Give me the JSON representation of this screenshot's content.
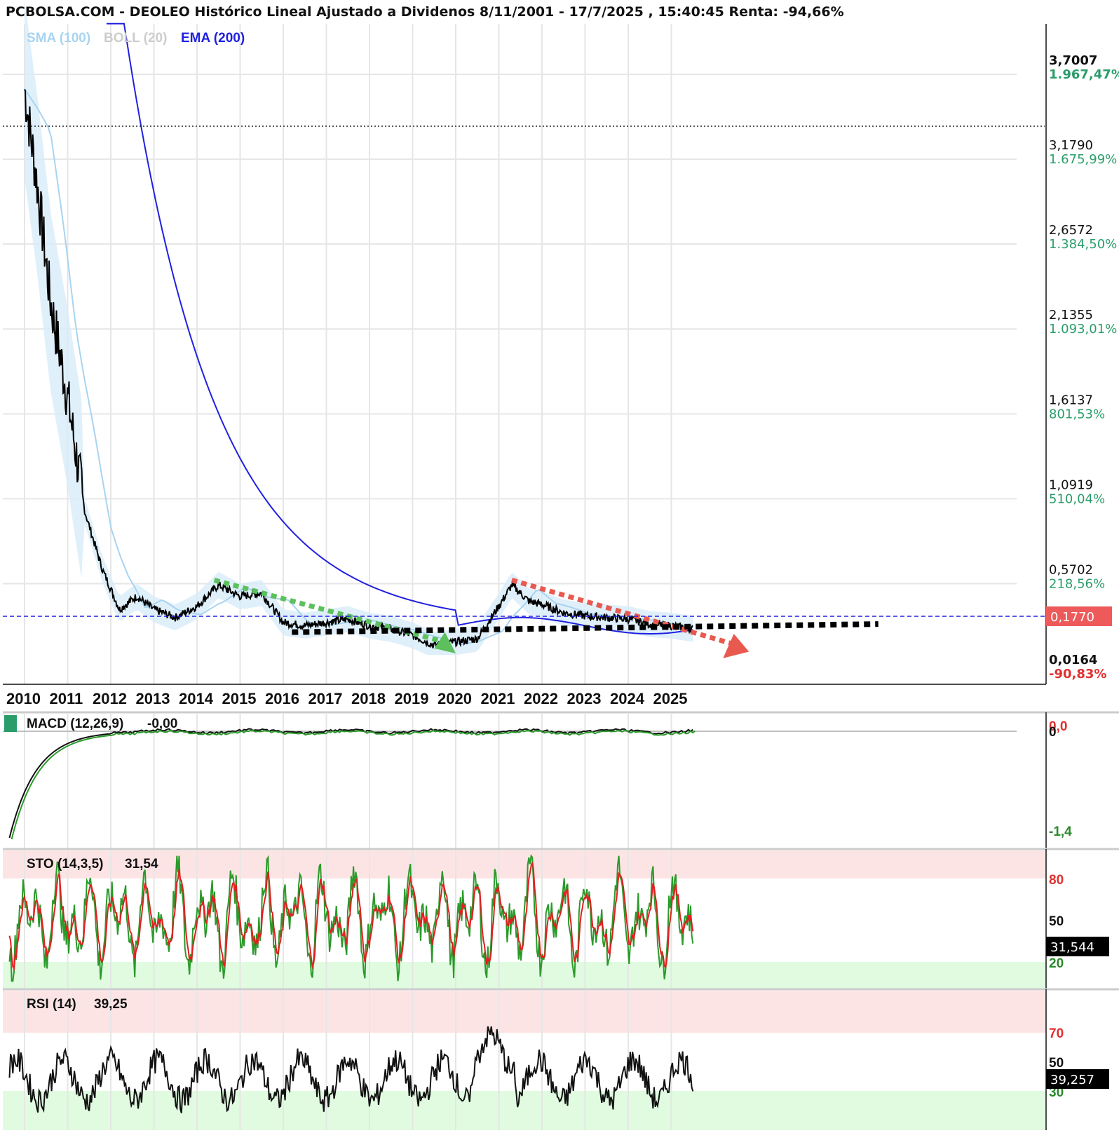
{
  "title": "PCBOLSA.COM - DEOLEO Histórico Lineal Ajustado a Dividenos 8/11/2001 - 17/7/2025 , 15:40:45 Renta: -94,66%",
  "colors": {
    "sma": "#a8d4f0",
    "boll": "#cccccc",
    "ema": "#2020e0",
    "price": "#000000",
    "green_text": "#2a9d6a",
    "red_text": "#e03030",
    "trend_green": "#5cc05c",
    "trend_red": "#e85a50",
    "support": "#000000",
    "sto_k": "#2a9a2a",
    "sto_d": "#e02020"
  },
  "main_legend": {
    "sma": "SMA (100)",
    "boll": "BOLL (20)",
    "ema": "EMA (200)"
  },
  "current_price": "0,1770",
  "price_axis": [
    {
      "price": "3,7007",
      "pct": "1.967,47%",
      "bold": true
    },
    {
      "price": "3,1790",
      "pct": "1.675,99%"
    },
    {
      "price": "2,6572",
      "pct": "1.384,50%"
    },
    {
      "price": "2,1355",
      "pct": "1.093,01%"
    },
    {
      "price": "1,6137",
      "pct": "801,53%"
    },
    {
      "price": "1,0919",
      "pct": "510,04%"
    },
    {
      "price": "0,5702",
      "pct": "218,56%"
    },
    {
      "price": "0,0164",
      "pct": "-90,83%",
      "bold": true,
      "negative": true
    }
  ],
  "years": [
    "2010",
    "2011",
    "2012",
    "2013",
    "2014",
    "2015",
    "2016",
    "2017",
    "2018",
    "2019",
    "2020",
    "2021",
    "2022",
    "2023",
    "2024",
    "2025"
  ],
  "macd": {
    "label": "MACD (12,26,9)",
    "value": "-0,00",
    "axis_top": "0,0",
    "axis_zero": "0",
    "axis_bottom": "-1,4"
  },
  "sto": {
    "label": "STO (14,3,5)",
    "value": "31,54",
    "current": "31,544",
    "levels": [
      "80",
      "50",
      "20"
    ]
  },
  "rsi": {
    "label": "RSI (14)",
    "value": "39,25",
    "current": "39,257",
    "levels": [
      "70",
      "50",
      "30"
    ]
  },
  "chart_data": {
    "type": "line",
    "title": "PCBOLSA.COM - DEOLEO Histórico Lineal Ajustado a Dividenos 8/11/2001 - 17/7/2025 , 15:40:45 Renta: -94,66%",
    "x": [
      2010.0,
      2010.3,
      2010.6,
      2011.0,
      2011.4,
      2011.8,
      2012.2,
      2012.6,
      2013.0,
      2013.5,
      2014.0,
      2014.5,
      2015.0,
      2015.5,
      2016.0,
      2016.5,
      2017.0,
      2017.5,
      2018.0,
      2018.5,
      2019.0,
      2019.5,
      2020.0,
      2020.5,
      2021.0,
      2021.3,
      2021.7,
      2022.0,
      2022.5,
      2023.0,
      2023.5,
      2024.0,
      2024.5,
      2025.0,
      2025.5
    ],
    "series": [
      {
        "values": [
          3.5,
          2.9,
          2.2,
          1.6,
          0.9,
          0.55,
          0.3,
          0.38,
          0.3,
          0.25,
          0.32,
          0.45,
          0.38,
          0.4,
          0.22,
          0.2,
          0.22,
          0.24,
          0.2,
          0.18,
          0.14,
          0.08,
          0.1,
          0.12,
          0.32,
          0.45,
          0.35,
          0.33,
          0.28,
          0.26,
          0.25,
          0.24,
          0.21,
          0.2,
          0.18
        ]
      }
    ],
    "ylim": [
      0.0164,
      3.7007
    ],
    "xlim": [
      2009.6,
      2025.9
    ],
    "grid": true
  }
}
